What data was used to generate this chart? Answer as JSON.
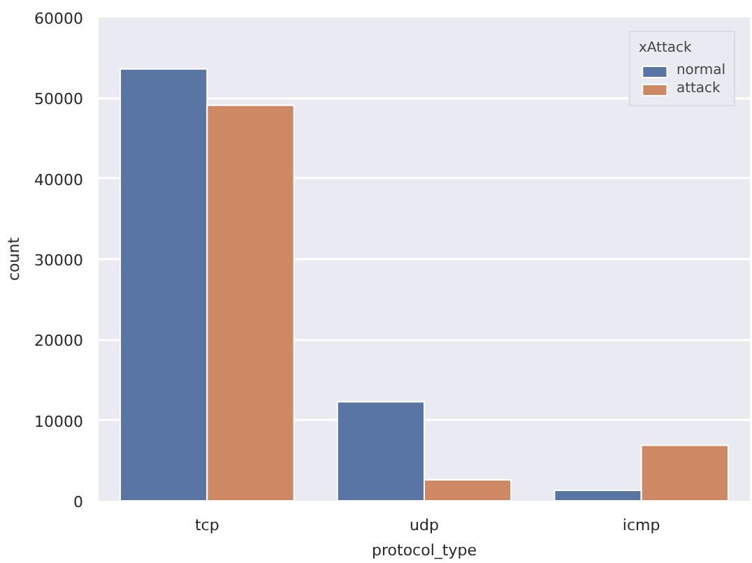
{
  "chart_data": {
    "type": "bar",
    "xlabel": "protocol_type",
    "ylabel": "count",
    "legend_title": "xAttack",
    "categories": [
      "tcp",
      "udp",
      "icmp"
    ],
    "series": [
      {
        "name": "normal",
        "color": "#5875a4",
        "values": [
          53600,
          12300,
          1300
        ]
      },
      {
        "name": "attack",
        "color": "#cc8963",
        "values": [
          49100,
          2600,
          6900
        ]
      }
    ],
    "ylim": [
      0,
      60000
    ],
    "yticks": [
      0,
      10000,
      20000,
      30000,
      40000,
      50000,
      60000
    ],
    "grid": "y",
    "legend": "top right"
  }
}
